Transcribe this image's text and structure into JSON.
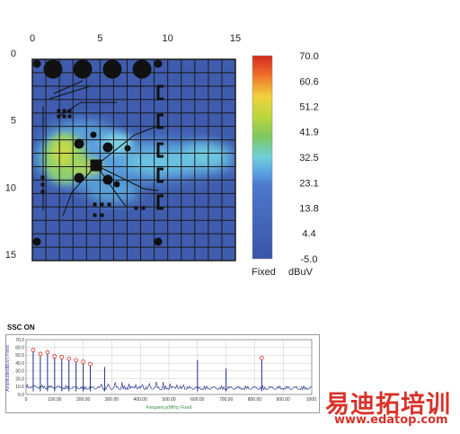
{
  "chart_data": [
    {
      "type": "heatmap",
      "title": "",
      "x_ticks": [
        "0",
        "5",
        "10",
        "15"
      ],
      "y_ticks": [
        "0",
        "5",
        "10",
        "15"
      ],
      "xlim": [
        0,
        15
      ],
      "ylim": [
        0,
        15
      ],
      "grid": true,
      "legend_position": "right",
      "colorbar": {
        "labels": [
          "70.0",
          "60.6",
          "51.2",
          "41.9",
          "32.5",
          "23.1",
          "13.8",
          "4.4",
          "-5.0"
        ],
        "min": -5.0,
        "max": 70.0,
        "mode_label": "Fixed",
        "unit_label": "dBuV",
        "colors": [
          "#d62a1e",
          "#f08a2c",
          "#f0d83a",
          "#b9d63a",
          "#7cc85a",
          "#6fd0dc",
          "#4c7fd0",
          "#3a5fb8",
          "#3a55a8"
        ]
      },
      "hotspots": [
        {
          "x": 2.0,
          "y": 7.5,
          "value": 55.0
        },
        {
          "x": 3.2,
          "y": 8.1,
          "value": 50.0
        },
        {
          "x": 5.6,
          "y": 6.5,
          "value": 38.0
        },
        {
          "x": 9.0,
          "y": 7.6,
          "value": 39.0
        },
        {
          "x": 12.2,
          "y": 7.0,
          "value": 38.0
        },
        {
          "x": 7.5,
          "y": 9.5,
          "value": 33.0
        }
      ]
    },
    {
      "type": "line",
      "title": "SSC ON",
      "xlabel": "Frequency(MHz) Fixed",
      "ylabel": "Amplitude(dBuV) Fixed",
      "xlim": [
        0,
        1000
      ],
      "ylim": [
        0,
        70
      ],
      "x_ticks": [
        "0",
        "100.00",
        "200.00",
        "300.00",
        "400.00",
        "500.00",
        "600.00",
        "700.00",
        "800.00",
        "900.00",
        "1000."
      ],
      "y_ticks": [
        "70.0",
        "60.0",
        "50.0",
        "40.0",
        "30.0",
        "20.0",
        "10.0",
        "0.0"
      ],
      "peaks": [
        {
          "x": 25,
          "y": 55
        },
        {
          "x": 50,
          "y": 50
        },
        {
          "x": 75,
          "y": 52
        },
        {
          "x": 100,
          "y": 47
        },
        {
          "x": 125,
          "y": 46
        },
        {
          "x": 150,
          "y": 44
        },
        {
          "x": 175,
          "y": 42
        },
        {
          "x": 200,
          "y": 40
        },
        {
          "x": 225,
          "y": 37
        },
        {
          "x": 275,
          "y": 35
        },
        {
          "x": 600,
          "y": 44
        },
        {
          "x": 700,
          "y": 33
        },
        {
          "x": 825,
          "y": 45
        }
      ],
      "markers": [
        {
          "x": 25,
          "y": 55
        },
        {
          "x": 50,
          "y": 50
        },
        {
          "x": 75,
          "y": 52
        },
        {
          "x": 100,
          "y": 47
        },
        {
          "x": 125,
          "y": 46
        },
        {
          "x": 150,
          "y": 44
        },
        {
          "x": 175,
          "y": 42
        },
        {
          "x": 200,
          "y": 40
        },
        {
          "x": 225,
          "y": 37
        },
        {
          "x": 825,
          "y": 45
        }
      ],
      "series_color": "#2c3f90",
      "marker_color": "#d8322a"
    }
  ],
  "watermark": {
    "cn_text": "易迪拓培训",
    "url_text": "www.edatop.com",
    "color": "#d8322a"
  }
}
